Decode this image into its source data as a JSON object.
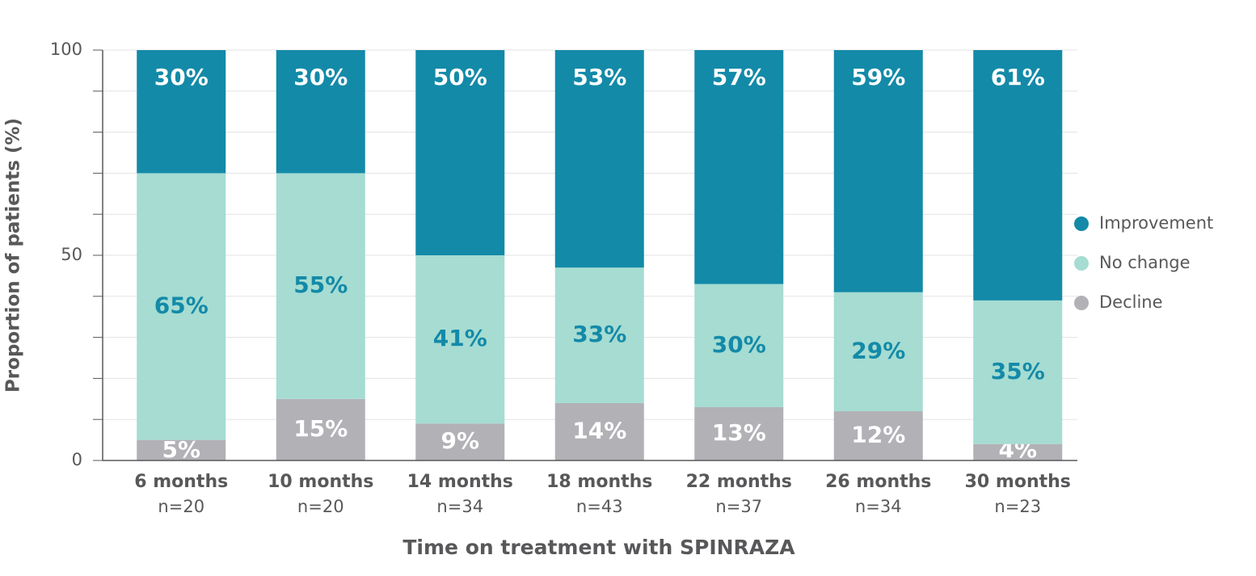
{
  "chart_data": {
    "type": "stacked_bar",
    "x_label": "Time on treatment with SPINRAZA",
    "y_label": "Proportion of patients (%)",
    "categories": [
      "6 months",
      "10 months",
      "14 months",
      "18 months",
      "22 months",
      "26 months",
      "30 months"
    ],
    "category_sublabels": [
      "n=20",
      "n=20",
      "n=34",
      "n=43",
      "n=37",
      "n=34",
      "n=23"
    ],
    "series": [
      {
        "name": "Improvement",
        "color": "#138aa8",
        "label_color": "#ffffff",
        "values": [
          30,
          30,
          50,
          53,
          57,
          59,
          61
        ],
        "value_labels": [
          "30%",
          "30%",
          "50%",
          "53%",
          "57%",
          "59%",
          "61%"
        ]
      },
      {
        "name": "No change",
        "color": "#a6dcd2",
        "label_color": "#138aa8",
        "values": [
          65,
          55,
          41,
          33,
          30,
          29,
          35
        ],
        "value_labels": [
          "65%",
          "55%",
          "41%",
          "33%",
          "30%",
          "29%",
          "35%"
        ]
      },
      {
        "name": "Decline",
        "color": "#b1b1b6",
        "label_color": "#ffffff",
        "values": [
          5,
          15,
          9,
          14,
          13,
          12,
          4
        ],
        "value_labels": [
          "5%",
          "15%",
          "9%",
          "14%",
          "13%",
          "12%",
          "4%"
        ]
      }
    ],
    "ylim": [
      0,
      100
    ],
    "yticks": [
      0,
      50,
      100
    ],
    "minor_yticks": [
      0,
      10,
      20,
      30,
      40,
      50,
      60,
      70,
      80,
      90,
      100
    ],
    "grid": true,
    "legend": "right"
  }
}
